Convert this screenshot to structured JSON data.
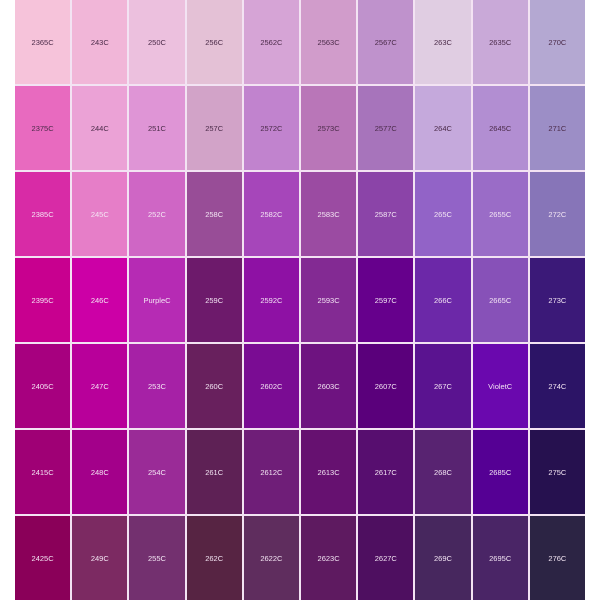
{
  "swatches": [
    [
      {
        "label": "2365C",
        "color": "#f6c3da"
      },
      {
        "label": "243C",
        "color": "#f1b6d8"
      },
      {
        "label": "250C",
        "color": "#ecc0de"
      },
      {
        "label": "256C",
        "color": "#e4c1d6"
      },
      {
        "label": "2562C",
        "color": "#d6a4d6"
      },
      {
        "label": "2563C",
        "color": "#d19ccb"
      },
      {
        "label": "2567C",
        "color": "#bf92cc"
      },
      {
        "label": "263C",
        "color": "#e0cde2"
      },
      {
        "label": "2635C",
        "color": "#c9a9d8"
      },
      {
        "label": "270C",
        "color": "#b4a8d2"
      }
    ],
    [
      {
        "label": "2375C",
        "color": "#e86abf"
      },
      {
        "label": "244C",
        "color": "#eba2d6"
      },
      {
        "label": "251C",
        "color": "#df95d6"
      },
      {
        "label": "257C",
        "color": "#d2a3c8"
      },
      {
        "label": "2572C",
        "color": "#c183ce"
      },
      {
        "label": "2573C",
        "color": "#b976b8"
      },
      {
        "label": "2577C",
        "color": "#a774bb"
      },
      {
        "label": "264C",
        "color": "#c5a9dc"
      },
      {
        "label": "2645C",
        "color": "#b28ed2"
      },
      {
        "label": "271C",
        "color": "#9c8ec6"
      }
    ],
    [
      {
        "label": "2385C",
        "color": "#d82ba6"
      },
      {
        "label": "245C",
        "color": "#e67ec8"
      },
      {
        "label": "252C",
        "color": "#cf66c5"
      },
      {
        "label": "258C",
        "color": "#984d97"
      },
      {
        "label": "2582C",
        "color": "#a646ba"
      },
      {
        "label": "2583C",
        "color": "#9b4ba2"
      },
      {
        "label": "2587C",
        "color": "#8b44a8"
      },
      {
        "label": "265C",
        "color": "#9263c7"
      },
      {
        "label": "2655C",
        "color": "#9a6cc7"
      },
      {
        "label": "272C",
        "color": "#8775b8"
      }
    ],
    [
      {
        "label": "2395C",
        "color": "#c8008f"
      },
      {
        "label": "246C",
        "color": "#cc00a6"
      },
      {
        "label": "PurpleC",
        "color": "#b62bb4"
      },
      {
        "label": "259C",
        "color": "#6d1a6b"
      },
      {
        "label": "2592C",
        "color": "#8e11a4"
      },
      {
        "label": "2593C",
        "color": "#832a93"
      },
      {
        "label": "2597C",
        "color": "#66008c"
      },
      {
        "label": "266C",
        "color": "#6c28a8"
      },
      {
        "label": "2665C",
        "color": "#8751b8"
      },
      {
        "label": "273C",
        "color": "#3b1978"
      }
    ],
    [
      {
        "label": "2405C",
        "color": "#a7007f"
      },
      {
        "label": "247C",
        "color": "#b8009a"
      },
      {
        "label": "253C",
        "color": "#a621a6"
      },
      {
        "label": "260C",
        "color": "#68205d"
      },
      {
        "label": "2602C",
        "color": "#7a0c93"
      },
      {
        "label": "2603C",
        "color": "#6e1380"
      },
      {
        "label": "2607C",
        "color": "#5a007b"
      },
      {
        "label": "267C",
        "color": "#5a1390"
      },
      {
        "label": "VioletC",
        "color": "#6a08ae"
      },
      {
        "label": "274C",
        "color": "#2c1466"
      }
    ],
    [
      {
        "label": "2415C",
        "color": "#9f0075"
      },
      {
        "label": "248C",
        "color": "#a3008a"
      },
      {
        "label": "254C",
        "color": "#9a2b97"
      },
      {
        "label": "261C",
        "color": "#5e2155"
      },
      {
        "label": "2612C",
        "color": "#6f1e78"
      },
      {
        "label": "2613C",
        "color": "#661170"
      },
      {
        "label": "2617C",
        "color": "#570e6f"
      },
      {
        "label": "268C",
        "color": "#582371"
      },
      {
        "label": "2685C",
        "color": "#550094"
      },
      {
        "label": "275C",
        "color": "#26114f"
      }
    ],
    [
      {
        "label": "2425C",
        "color": "#8a0059"
      },
      {
        "label": "249C",
        "color": "#7c2a62"
      },
      {
        "label": "255C",
        "color": "#73306f"
      },
      {
        "label": "262C",
        "color": "#572443"
      },
      {
        "label": "2622C",
        "color": "#5f2d5e"
      },
      {
        "label": "2623C",
        "color": "#5e1a60"
      },
      {
        "label": "2627C",
        "color": "#4e0f60"
      },
      {
        "label": "269C",
        "color": "#47275e"
      },
      {
        "label": "2695C",
        "color": "#4a2566"
      },
      {
        "label": "276C",
        "color": "#2c2444"
      }
    ]
  ]
}
